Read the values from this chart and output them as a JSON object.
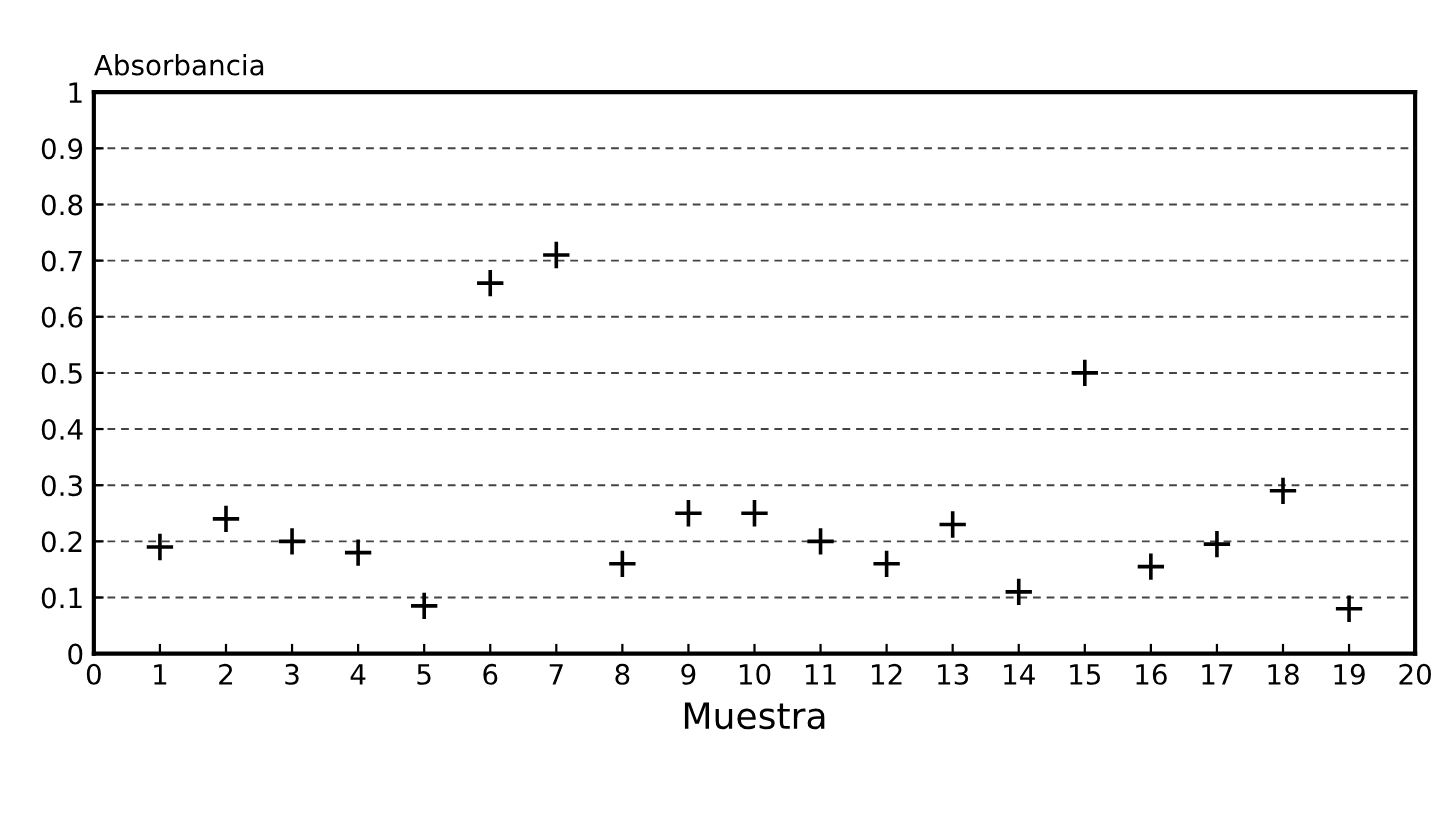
{
  "chart_data": {
    "type": "scatter",
    "xlabel": "Muestra",
    "ylabel": "Absorbancia",
    "x": [
      1,
      2,
      3,
      4,
      5,
      6,
      7,
      8,
      9,
      10,
      11,
      12,
      13,
      14,
      15,
      16,
      17,
      18,
      19
    ],
    "values": [
      0.19,
      0.24,
      0.2,
      0.18,
      0.085,
      0.66,
      0.71,
      0.16,
      0.25,
      0.25,
      0.2,
      0.16,
      0.23,
      0.11,
      0.5,
      0.155,
      0.195,
      0.29,
      0.08
    ],
    "color": "#000000",
    "marker": "cross",
    "xlim": [
      0,
      20
    ],
    "xticks": [
      0,
      1,
      2,
      3,
      4,
      5,
      6,
      7,
      8,
      9,
      10,
      11,
      12,
      13,
      14,
      15,
      16,
      17,
      18,
      19,
      20
    ],
    "ylim": [
      0,
      1
    ],
    "yticks": [
      0,
      0.1,
      0.2,
      0.3,
      0.4,
      0.5,
      0.6,
      0.7,
      0.8,
      0.9,
      1
    ],
    "grid": "y"
  }
}
